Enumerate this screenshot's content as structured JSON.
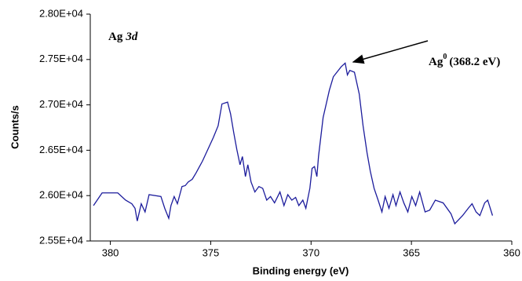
{
  "chart_data": {
    "type": "line",
    "x_label": "Binding energy (eV)",
    "y_label": "Counts/s",
    "annotations": [
      [
        "Ag",
        "3d"
      ],
      [
        "Ag",
        "0",
        "(368.2 eV)"
      ]
    ],
    "xlim": [
      381,
      360
    ],
    "xticks": [
      380,
      375,
      370,
      365,
      360
    ],
    "ylim": [
      25500,
      28000
    ],
    "yticks": [
      {
        "value": 25500,
        "label": "2.55E+04"
      },
      {
        "value": 26000,
        "label": "2.60E+04"
      },
      {
        "value": 26500,
        "label": "2.65E+04"
      },
      {
        "value": 27000,
        "label": "2.70E+04"
      },
      {
        "value": 27500,
        "label": "2.75E+04"
      },
      {
        "value": 28000,
        "label": "2.80E+04"
      }
    ],
    "color": "#1c1c9c",
    "x": [
      380.84,
      380.41,
      379.63,
      379.24,
      378.93,
      378.77,
      378.66,
      378.46,
      378.27,
      378.07,
      377.48,
      377.29,
      377.09,
      376.98,
      376.82,
      376.66,
      376.43,
      376.27,
      376.12,
      375.92,
      375.73,
      375.41,
      375.14,
      374.87,
      374.63,
      374.44,
      374.16,
      374.01,
      373.85,
      373.7,
      373.54,
      373.42,
      373.27,
      373.15,
      372.99,
      372.8,
      372.6,
      372.41,
      372.21,
      372.02,
      371.82,
      371.55,
      371.35,
      371.16,
      370.96,
      370.77,
      370.61,
      370.41,
      370.26,
      370.06,
      369.95,
      369.83,
      369.71,
      369.63,
      369.4,
      369.09,
      368.89,
      368.5,
      368.3,
      368.19,
      368.07,
      367.84,
      367.6,
      367.41,
      367.21,
      367.05,
      366.86,
      366.66,
      366.47,
      366.31,
      366.12,
      365.92,
      365.77,
      365.57,
      365.38,
      365.18,
      364.98,
      364.79,
      364.59,
      364.32,
      364.09,
      363.81,
      363.42,
      363.03,
      362.84,
      362.45,
      362.17,
      361.98,
      361.78,
      361.59,
      361.35,
      361.2,
      360.96
    ],
    "values": [
      25890,
      26030,
      26030,
      25950,
      25910,
      25860,
      25720,
      25910,
      25820,
      26010,
      25990,
      25860,
      25750,
      25890,
      25990,
      25910,
      26100,
      26110,
      26150,
      26180,
      26250,
      26380,
      26510,
      26640,
      26770,
      27010,
      27030,
      26900,
      26690,
      26510,
      26340,
      26430,
      26210,
      26340,
      26150,
      26040,
      26100,
      26080,
      25950,
      25990,
      25920,
      26040,
      25890,
      26010,
      25950,
      25980,
      25890,
      25950,
      25860,
      26080,
      26300,
      26320,
      26210,
      26430,
      26860,
      27160,
      27310,
      27420,
      27460,
      27330,
      27380,
      27360,
      27120,
      26770,
      26470,
      26270,
      26080,
      25950,
      25820,
      25990,
      25860,
      26010,
      25890,
      26040,
      25920,
      25820,
      25990,
      25890,
      26040,
      25820,
      25840,
      25950,
      25920,
      25800,
      25690,
      25780,
      25860,
      25910,
      25820,
      25780,
      25920,
      25950,
      25780
    ]
  }
}
